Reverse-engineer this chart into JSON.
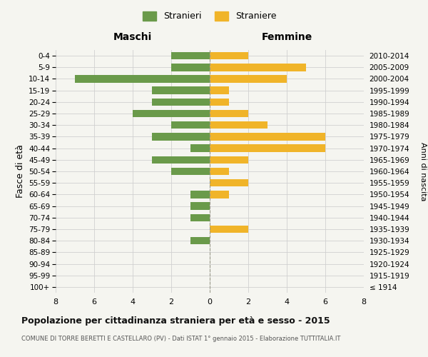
{
  "age_groups": [
    "100+",
    "95-99",
    "90-94",
    "85-89",
    "80-84",
    "75-79",
    "70-74",
    "65-69",
    "60-64",
    "55-59",
    "50-54",
    "45-49",
    "40-44",
    "35-39",
    "30-34",
    "25-29",
    "20-24",
    "15-19",
    "10-14",
    "5-9",
    "0-4"
  ],
  "birth_years": [
    "≤ 1914",
    "1915-1919",
    "1920-1924",
    "1925-1929",
    "1930-1934",
    "1935-1939",
    "1940-1944",
    "1945-1949",
    "1950-1954",
    "1955-1959",
    "1960-1964",
    "1965-1969",
    "1970-1974",
    "1975-1979",
    "1980-1984",
    "1985-1989",
    "1990-1994",
    "1995-1999",
    "2000-2004",
    "2005-2009",
    "2010-2014"
  ],
  "maschi": [
    0,
    0,
    0,
    0,
    1,
    0,
    1,
    1,
    1,
    0,
    2,
    3,
    1,
    3,
    2,
    4,
    3,
    3,
    7,
    2,
    2
  ],
  "femmine": [
    0,
    0,
    0,
    0,
    0,
    2,
    0,
    0,
    1,
    2,
    1,
    2,
    6,
    6,
    3,
    2,
    1,
    1,
    4,
    5,
    2
  ],
  "maschi_color": "#6a9a4a",
  "femmine_color": "#f0b429",
  "background_color": "#f5f5f0",
  "grid_color": "#d0d0d0",
  "title": "Popolazione per cittadinanza straniera per età e sesso - 2015",
  "subtitle": "COMUNE DI TORRE BERETTI E CASTELLARO (PV) - Dati ISTAT 1° gennaio 2015 - Elaborazione TUTTITALIA.IT",
  "ylabel_left": "Fasce di età",
  "ylabel_right": "Anni di nascita",
  "xlabel_maschi": "Maschi",
  "xlabel_femmine": "Femmine",
  "legend_stranieri": "Stranieri",
  "legend_straniere": "Straniere",
  "xlim": 8
}
